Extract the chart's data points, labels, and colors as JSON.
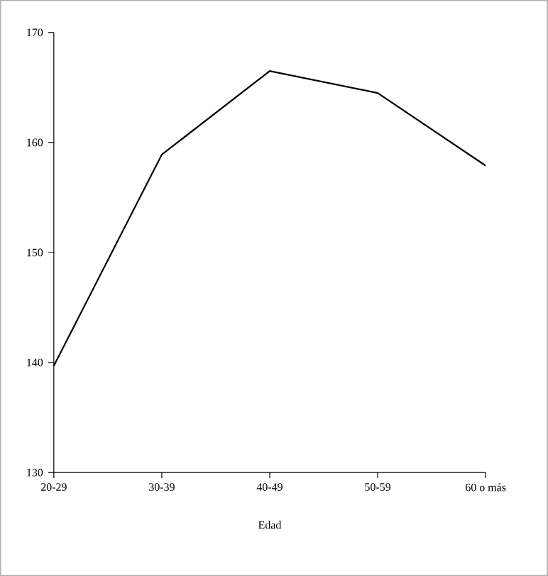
{
  "chart_data": {
    "type": "line",
    "xlabel": "Edad",
    "categories": [
      "20-29",
      "30-39",
      "40-49",
      "50-59",
      "60 o más"
    ],
    "values": [
      139.7,
      158.9,
      166.5,
      164.5,
      157.9
    ],
    "color": "#000000",
    "ylim": [
      130,
      170
    ],
    "yticks": [
      130,
      140,
      150,
      160,
      170
    ],
    "grid": false,
    "marker": "none",
    "line_style": "solid"
  }
}
